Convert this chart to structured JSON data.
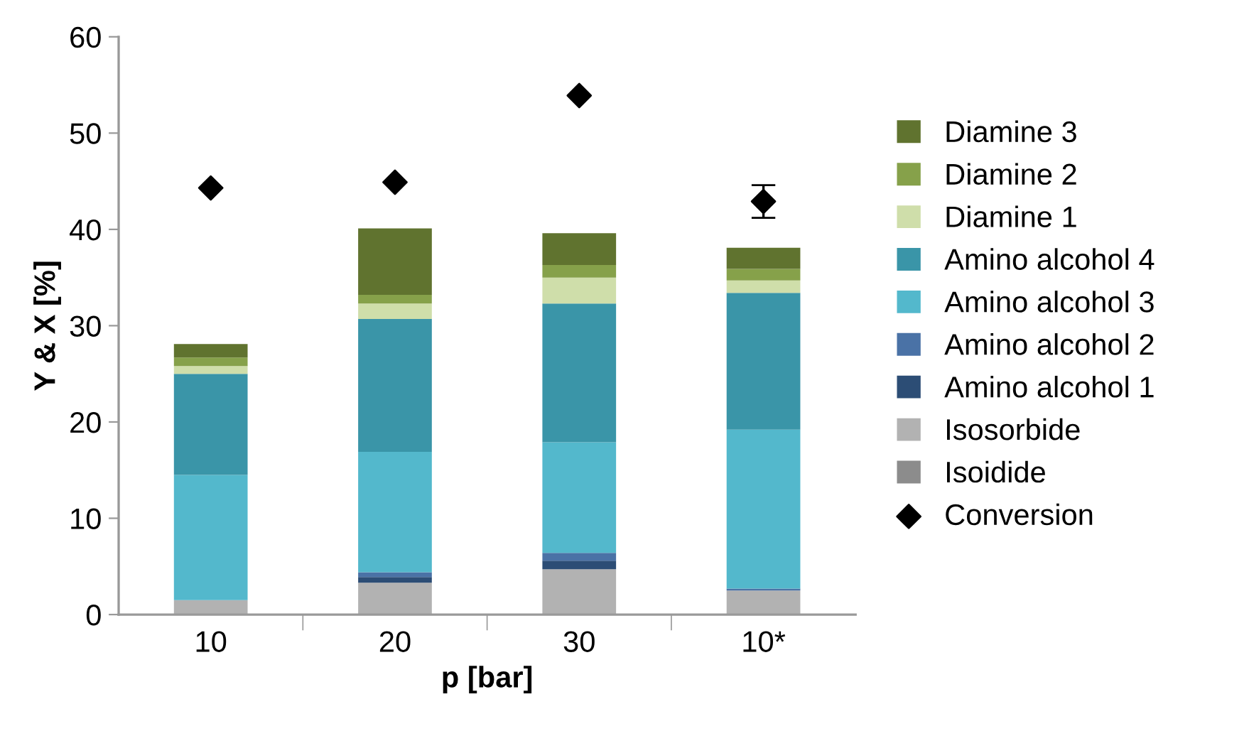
{
  "chart_data": {
    "type": "bar",
    "stacked": true,
    "xlabel": "p [bar]",
    "ylabel": "Y & X [%]",
    "categories": [
      "10",
      "20",
      "30",
      "10*"
    ],
    "ylim": [
      0,
      60
    ],
    "yticks": [
      0,
      10,
      20,
      30,
      40,
      50,
      60
    ],
    "grid": false,
    "legend": "right",
    "series": [
      {
        "name": "Isoidide",
        "color": "#8c8c8c",
        "values": [
          0,
          0,
          0,
          0
        ]
      },
      {
        "name": "Isosorbide",
        "color": "#b2b2b2",
        "values": [
          1.5,
          3.3,
          4.7,
          2.5
        ]
      },
      {
        "name": "Amino alcohol 1",
        "color": "#2c4d75",
        "values": [
          0,
          0.6,
          0.9,
          0
        ]
      },
      {
        "name": "Amino alcohol 2",
        "color": "#4a72a6",
        "values": [
          0,
          0.5,
          0.8,
          0.2
        ]
      },
      {
        "name": "Amino alcohol 3",
        "color": "#53b8cc",
        "values": [
          13.0,
          12.5,
          11.5,
          16.5
        ]
      },
      {
        "name": "Amino alcohol 4",
        "color": "#3a95a8",
        "values": [
          10.5,
          13.8,
          14.4,
          14.2
        ]
      },
      {
        "name": "Diamine 1",
        "color": "#cfdeaa",
        "values": [
          0.8,
          1.6,
          2.7,
          1.3
        ]
      },
      {
        "name": "Diamine 2",
        "color": "#86a14a",
        "values": [
          0.9,
          0.9,
          1.3,
          1.2
        ]
      },
      {
        "name": "Diamine 3",
        "color": "#60732f",
        "values": [
          1.4,
          6.9,
          3.3,
          2.2
        ]
      },
      {
        "name": "Conversion",
        "type": "scatter",
        "marker": "diamond",
        "color": "#000000",
        "x": [
          "10",
          "20",
          "30",
          "10*"
        ],
        "values": [
          44.3,
          44.9,
          53.9,
          42.9
        ],
        "errors": [
          null,
          null,
          null,
          1.7
        ]
      }
    ]
  }
}
